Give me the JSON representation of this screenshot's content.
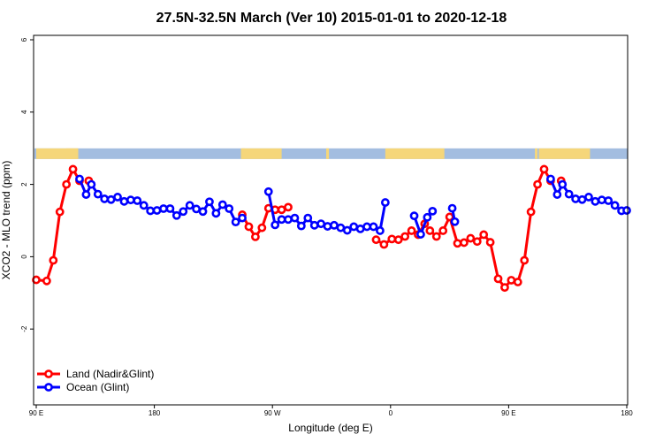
{
  "chart_data": {
    "type": "line",
    "title": "27.5N-32.5N March (Ver 10)   2015-01-01 to 2020-12-18",
    "xlabel": "Longitude (deg E)",
    "ylabel": "XCO2 - MLO trend (ppm)",
    "xlim": [
      90,
      540
    ],
    "ylim": [
      -4,
      6
    ],
    "x_ticks": [
      {
        "value": 90,
        "label": "90 E"
      },
      {
        "value": 180,
        "label": "180"
      },
      {
        "value": 270,
        "label": "90 W"
      },
      {
        "value": 360,
        "label": "0"
      },
      {
        "value": 450,
        "label": "90 E"
      },
      {
        "value": 540,
        "label": "180"
      }
    ],
    "y_ticks": [
      {
        "value": -2,
        "label": "-2"
      },
      {
        "value": 0,
        "label": "0"
      },
      {
        "value": 2,
        "label": "2"
      },
      {
        "value": 4,
        "label": "4"
      },
      {
        "value": 6,
        "label": "6"
      }
    ],
    "grid": false,
    "legend_position": "bottom-left",
    "surface_bar": {
      "y": 2.85,
      "land_color": "#f5d67a",
      "ocean_color": "#a3bde0",
      "land_ranges": [
        [
          90,
          122
        ],
        [
          473,
          512
        ]
      ],
      "land_islands": [
        [
          247,
          249
        ],
        [
          311,
          313
        ],
        [
          470,
          472
        ]
      ],
      "land_segments": [
        [
          113,
          122
        ],
        [
          246,
          277
        ],
        [
          311,
          313
        ],
        [
          356,
          401
        ]
      ]
    },
    "series": [
      {
        "name": "Land (Nadir&Glint)",
        "color": "#ff0000",
        "segments": [
          [
            [
              90.0,
              -0.64
            ],
            [
              98.0,
              -0.67
            ],
            [
              103.0,
              -0.1
            ],
            [
              108.0,
              1.24
            ],
            [
              113.0,
              2.0
            ],
            [
              118.0,
              2.42
            ],
            [
              123.0,
              2.1
            ]
          ],
          [
            [
              130.0,
              2.1
            ]
          ],
          [
            [
              247.0,
              1.16
            ],
            [
              252.0,
              0.83
            ],
            [
              257.0,
              0.55
            ],
            [
              262.0,
              0.8
            ],
            [
              267.0,
              1.34
            ],
            [
              272.0,
              1.3
            ],
            [
              277.0,
              1.3
            ],
            [
              282.0,
              1.37
            ]
          ],
          [
            [
              349.0,
              0.47
            ],
            [
              355.0,
              0.34
            ],
            [
              361.0,
              0.49
            ],
            [
              366.0,
              0.47
            ],
            [
              371.0,
              0.56
            ],
            [
              376.0,
              0.72
            ],
            [
              381.0,
              0.61
            ],
            [
              386.0,
              0.91
            ]
          ],
          [
            [
              390.0,
              0.72
            ],
            [
              395.0,
              0.56
            ],
            [
              400.0,
              0.72
            ],
            [
              405.0,
              1.1
            ],
            [
              411.0,
              0.37
            ],
            [
              416.0,
              0.39
            ],
            [
              421.0,
              0.51
            ],
            [
              426.0,
              0.42
            ],
            [
              431.0,
              0.61
            ],
            [
              436.0,
              0.4
            ],
            [
              442.0,
              -0.61
            ],
            [
              447.0,
              -0.85
            ],
            [
              452.0,
              -0.65
            ],
            [
              457.0,
              -0.7
            ],
            [
              462.0,
              -0.1
            ],
            [
              467.0,
              1.24
            ],
            [
              472.0,
              2.0
            ],
            [
              477.0,
              2.42
            ],
            [
              482.0,
              2.1
            ]
          ],
          [
            [
              490.0,
              2.1
            ]
          ]
        ]
      },
      {
        "name": "Ocean (Glint)",
        "color": "#0000ff",
        "segments": [
          [
            [
              123.0,
              2.15
            ],
            [
              128.0,
              1.72
            ],
            [
              132.0,
              2.0
            ],
            [
              137.0,
              1.73
            ],
            [
              142.0,
              1.6
            ],
            [
              147.0,
              1.58
            ],
            [
              152.0,
              1.65
            ],
            [
              157.0,
              1.53
            ],
            [
              162.0,
              1.57
            ],
            [
              167.0,
              1.55
            ],
            [
              172.0,
              1.42
            ],
            [
              177.0,
              1.27
            ],
            [
              182.0,
              1.28
            ],
            [
              187.0,
              1.33
            ],
            [
              192.0,
              1.33
            ],
            [
              197.0,
              1.14
            ],
            [
              202.0,
              1.25
            ],
            [
              207.0,
              1.42
            ],
            [
              212.0,
              1.32
            ],
            [
              217.0,
              1.25
            ],
            [
              222.0,
              1.52
            ],
            [
              227.0,
              1.2
            ],
            [
              232.0,
              1.44
            ],
            [
              237.0,
              1.33
            ],
            [
              242.0,
              0.96
            ],
            [
              247.0,
              1.07
            ]
          ],
          [
            [
              267.0,
              1.8
            ],
            [
              272.0,
              0.88
            ],
            [
              277.0,
              1.03
            ],
            [
              282.0,
              1.03
            ],
            [
              287.0,
              1.07
            ],
            [
              292.0,
              0.85
            ],
            [
              297.0,
              1.07
            ],
            [
              302.0,
              0.87
            ],
            [
              307.0,
              0.91
            ],
            [
              312.0,
              0.84
            ],
            [
              317.0,
              0.87
            ],
            [
              322.0,
              0.8
            ],
            [
              327.0,
              0.73
            ],
            [
              332.0,
              0.83
            ],
            [
              337.0,
              0.77
            ],
            [
              342.0,
              0.83
            ],
            [
              347.0,
              0.83
            ],
            [
              352.0,
              0.72
            ],
            [
              356.0,
              1.5
            ]
          ],
          [
            [
              378.0,
              1.13
            ],
            [
              383.0,
              0.62
            ],
            [
              388.0,
              1.09
            ],
            [
              392.0,
              1.26
            ]
          ],
          [
            [
              407.0,
              1.34
            ],
            [
              409.0,
              0.97
            ]
          ],
          [
            [
              482.0,
              2.15
            ],
            [
              487.0,
              1.72
            ],
            [
              491.0,
              2.0
            ],
            [
              496.0,
              1.73
            ],
            [
              501.0,
              1.6
            ],
            [
              506.0,
              1.58
            ],
            [
              511.0,
              1.65
            ],
            [
              516.0,
              1.53
            ],
            [
              521.0,
              1.57
            ],
            [
              526.0,
              1.55
            ],
            [
              531.0,
              1.42
            ],
            [
              536.0,
              1.27
            ],
            [
              540.0,
              1.28
            ]
          ]
        ]
      }
    ]
  }
}
